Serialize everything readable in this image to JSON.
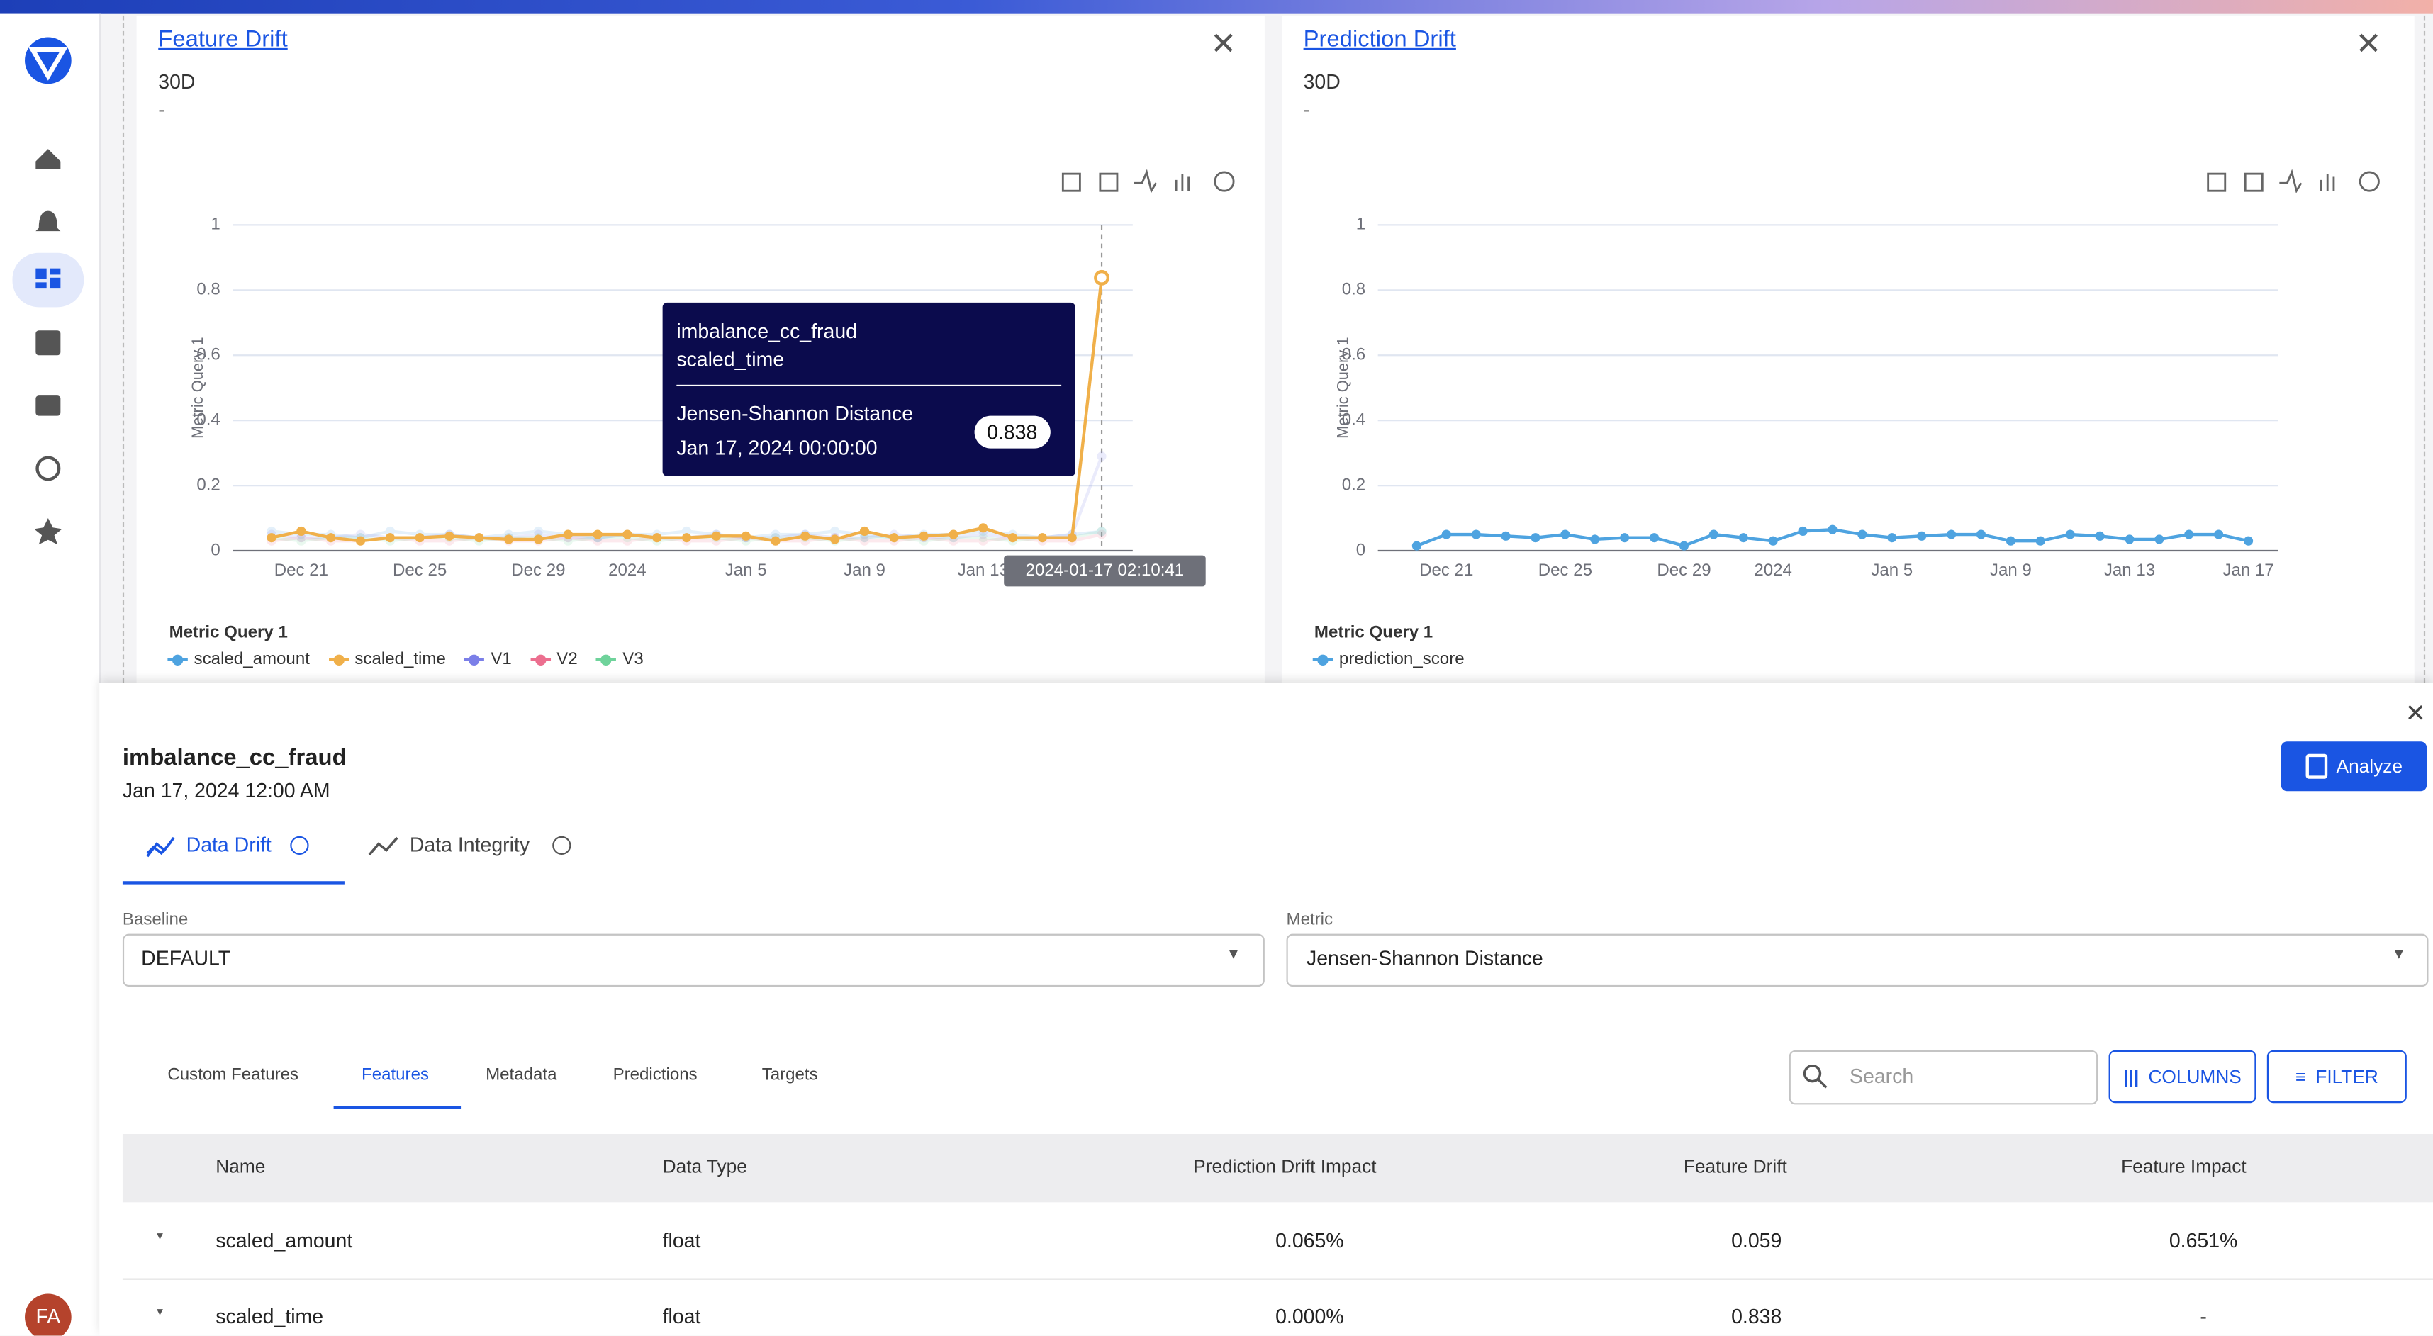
{
  "sidebar": {
    "avatar": "FA"
  },
  "chart_data": [
    {
      "type": "line",
      "title": "Feature Drift",
      "subtitle": "30D",
      "note": "-",
      "y_label": "Metric Query 1",
      "legend_title": "Metric Query 1",
      "categories": [
        null,
        "Dec 21",
        null,
        null,
        null,
        "Dec 25",
        null,
        null,
        null,
        "Dec 29",
        null,
        null,
        "2024",
        null,
        null,
        null,
        "Jan 5",
        null,
        null,
        null,
        "Jan 9",
        null,
        null,
        null,
        "Jan 13",
        null,
        null,
        null,
        null
      ],
      "ylim": [
        0,
        1
      ],
      "yticks": [
        0,
        0.2,
        0.4,
        0.6,
        0.8,
        1
      ],
      "grid": true,
      "series": [
        {
          "name": "scaled_amount",
          "color": "#4ea3e0",
          "values": [
            0.06,
            0.05,
            0.05,
            0.04,
            0.06,
            0.05,
            0.05,
            0.04,
            0.05,
            0.06,
            0.05,
            0.04,
            0.05,
            0.05,
            0.06,
            0.05,
            0.04,
            0.05,
            0.05,
            0.06,
            0.05,
            0.04,
            0.05,
            0.05,
            0.06,
            0.05,
            0.04,
            0.05,
            0.059
          ]
        },
        {
          "name": "scaled_time",
          "color": "#f0b04a",
          "values": [
            0.04,
            0.06,
            0.04,
            0.03,
            0.04,
            0.04,
            0.045,
            0.04,
            0.035,
            0.035,
            0.05,
            0.05,
            0.05,
            0.04,
            0.04,
            0.045,
            0.045,
            0.03,
            0.045,
            0.035,
            0.06,
            0.04,
            0.045,
            0.05,
            0.07,
            0.04,
            0.04,
            0.04,
            0.838
          ]
        },
        {
          "name": "V1",
          "color": "#7b7fe8",
          "values": [
            0.05,
            0.04,
            0.04,
            0.05,
            0.04,
            0.04,
            0.05,
            0.04,
            0.04,
            0.05,
            0.04,
            0.04,
            0.05,
            0.04,
            0.04,
            0.05,
            0.04,
            0.04,
            0.05,
            0.04,
            0.04,
            0.05,
            0.04,
            0.04,
            0.05,
            0.04,
            0.04,
            0.05,
            0.29
          ]
        },
        {
          "name": "V2",
          "color": "#ec6f8f",
          "values": [
            0.03,
            0.04,
            0.03,
            0.03,
            0.04,
            0.03,
            0.03,
            0.04,
            0.03,
            0.03,
            0.04,
            0.03,
            0.03,
            0.04,
            0.03,
            0.03,
            0.04,
            0.03,
            0.03,
            0.04,
            0.03,
            0.03,
            0.04,
            0.03,
            0.03,
            0.04,
            0.03,
            0.03,
            0.05
          ]
        },
        {
          "name": "V3",
          "color": "#6fd39b",
          "values": [
            0.04,
            0.03,
            0.04,
            0.04,
            0.03,
            0.04,
            0.04,
            0.03,
            0.04,
            0.04,
            0.03,
            0.04,
            0.04,
            0.03,
            0.04,
            0.04,
            0.03,
            0.04,
            0.04,
            0.03,
            0.04,
            0.04,
            0.03,
            0.04,
            0.04,
            0.03,
            0.04,
            0.04,
            0.06
          ]
        }
      ],
      "tooltip": {
        "model": "imbalance_cc_fraud",
        "series": "scaled_time",
        "metric": "Jensen-Shannon Distance",
        "date": "Jan 17, 2024 00:00:00",
        "index": 28
      },
      "pointer_label": "2024-01-17 02:10:41"
    },
    {
      "type": "line",
      "title": "Prediction Drift",
      "subtitle": "30D",
      "note": "-",
      "y_label": "Metric Query 1",
      "legend_title": "Metric Query 1",
      "categories": [
        null,
        "Dec 21",
        null,
        null,
        null,
        "Dec 25",
        null,
        null,
        null,
        "Dec 29",
        null,
        null,
        "2024",
        null,
        null,
        null,
        "Jan 5",
        null,
        null,
        null,
        "Jan 9",
        null,
        null,
        null,
        "Jan 13",
        null,
        null,
        null,
        "Jan 17"
      ],
      "ylim": [
        0,
        1
      ],
      "yticks": [
        0,
        0.2,
        0.4,
        0.6,
        0.8,
        1
      ],
      "grid": true,
      "series": [
        {
          "name": "prediction_score",
          "color": "#4ea3e0",
          "values": [
            0.015,
            0.05,
            0.05,
            0.045,
            0.04,
            0.05,
            0.035,
            0.04,
            0.04,
            0.015,
            0.05,
            0.04,
            0.03,
            0.06,
            0.065,
            0.05,
            0.04,
            0.045,
            0.05,
            0.05,
            0.03,
            0.03,
            0.05,
            0.045,
            0.035,
            0.035,
            0.05,
            0.05,
            0.03
          ]
        }
      ]
    }
  ],
  "detail": {
    "model": "imbalance_cc_fraud",
    "date": "Jan 17, 2024 12:00 AM",
    "analyze": "Analyze",
    "tabs": [
      "Data Drift",
      "Data Integrity"
    ],
    "baseline_label": "Baseline",
    "baseline": "DEFAULT",
    "metric_label": "Metric",
    "metric": "Jensen-Shannon Distance",
    "subtabs": [
      "Custom Features",
      "Features",
      "Metadata",
      "Predictions",
      "Targets"
    ],
    "search": "Search",
    "columns": "COLUMNS",
    "filter": "FILTER",
    "table": {
      "header": [
        "Name",
        "Data Type",
        "Prediction Drift Impact",
        "Feature Drift",
        "Feature Impact"
      ],
      "rows": [
        [
          "scaled_amount",
          "float",
          "0.065%",
          "0.059",
          "0.651%"
        ],
        [
          "scaled_time",
          "float",
          "0.000%",
          "0.838",
          "-"
        ]
      ]
    }
  }
}
